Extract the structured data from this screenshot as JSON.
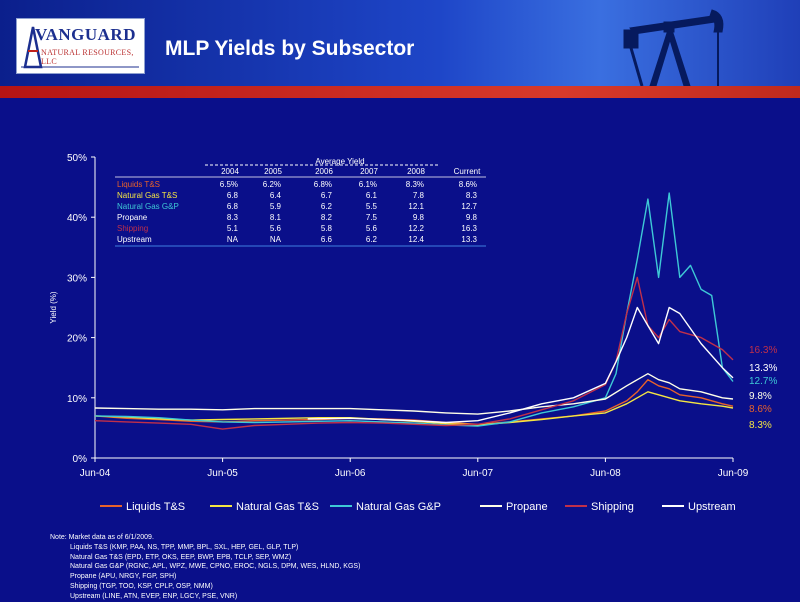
{
  "header": {
    "title": "MLP Yields by Subsector",
    "logo_word": "VANGUARD",
    "logo_sub": "NATURAL RESOURCES, LLC"
  },
  "colors": {
    "background": "#0a0f8a",
    "accent_red": "#c0201a",
    "liquids": "#e8622a",
    "natgas_ts": "#f5e642",
    "natgas_gp": "#3ec9d6",
    "propane": "#ffffe8",
    "shipping": "#c0304a",
    "upstream": "#ffffff"
  },
  "chart_data": {
    "type": "line",
    "title": "",
    "xlabel": "",
    "ylabel": "Yield (%)",
    "x_ticks": [
      "Jun-04",
      "Jun-05",
      "Jun-06",
      "Jun-07",
      "Jun-08",
      "Jun-09"
    ],
    "y_ticks": [
      "0%",
      "10%",
      "20%",
      "30%",
      "40%",
      "50%"
    ],
    "ylim": [
      0,
      50
    ],
    "xlim": [
      "2004-06",
      "2009-06"
    ],
    "legend_position": "bottom",
    "series": [
      {
        "name": "Liquids T&S",
        "color": "#e8622a",
        "points": [
          [
            "2004-06",
            7.0
          ],
          [
            "2004-09",
            6.6
          ],
          [
            "2004-12",
            6.4
          ],
          [
            "2005-03",
            6.1
          ],
          [
            "2005-06",
            6.0
          ],
          [
            "2005-09",
            6.2
          ],
          [
            "2005-12",
            6.3
          ],
          [
            "2006-03",
            6.4
          ],
          [
            "2006-06",
            6.6
          ],
          [
            "2006-09",
            6.5
          ],
          [
            "2006-12",
            6.3
          ],
          [
            "2007-03",
            5.9
          ],
          [
            "2007-06",
            5.6
          ],
          [
            "2007-09",
            6.0
          ],
          [
            "2007-12",
            6.5
          ],
          [
            "2008-03",
            7.0
          ],
          [
            "2008-06",
            7.8
          ],
          [
            "2008-08",
            9.5
          ],
          [
            "2008-09",
            11.0
          ],
          [
            "2008-10",
            13.0
          ],
          [
            "2008-11",
            12.0
          ],
          [
            "2008-12",
            11.5
          ],
          [
            "2009-01",
            10.5
          ],
          [
            "2009-03",
            10.0
          ],
          [
            "2009-05",
            9.0
          ],
          [
            "2009-06",
            8.6
          ]
        ]
      },
      {
        "name": "Natural  Gas T&S",
        "color": "#f5e642",
        "points": [
          [
            "2004-06",
            7.0
          ],
          [
            "2004-09",
            6.8
          ],
          [
            "2004-12",
            6.5
          ],
          [
            "2005-03",
            6.3
          ],
          [
            "2005-06",
            6.4
          ],
          [
            "2005-09",
            6.5
          ],
          [
            "2005-12",
            6.6
          ],
          [
            "2006-03",
            6.7
          ],
          [
            "2006-06",
            6.7
          ],
          [
            "2006-09",
            6.4
          ],
          [
            "2006-12",
            6.1
          ],
          [
            "2007-03",
            5.7
          ],
          [
            "2007-06",
            5.5
          ],
          [
            "2007-09",
            5.9
          ],
          [
            "2007-12",
            6.4
          ],
          [
            "2008-03",
            7.0
          ],
          [
            "2008-06",
            7.5
          ],
          [
            "2008-08",
            9.0
          ],
          [
            "2008-09",
            10.0
          ],
          [
            "2008-10",
            11.0
          ],
          [
            "2008-11",
            10.5
          ],
          [
            "2008-12",
            10.0
          ],
          [
            "2009-01",
            9.5
          ],
          [
            "2009-03",
            9.0
          ],
          [
            "2009-05",
            8.6
          ],
          [
            "2009-06",
            8.3
          ]
        ]
      },
      {
        "name": "Natural Gas G&P",
        "color": "#3ec9d6",
        "points": [
          [
            "2004-06",
            7.0
          ],
          [
            "2004-09",
            6.9
          ],
          [
            "2004-12",
            6.7
          ],
          [
            "2005-03",
            6.3
          ],
          [
            "2005-06",
            6.0
          ],
          [
            "2005-09",
            5.9
          ],
          [
            "2005-12",
            6.0
          ],
          [
            "2006-03",
            6.1
          ],
          [
            "2006-06",
            6.2
          ],
          [
            "2006-09",
            6.0
          ],
          [
            "2006-12",
            5.8
          ],
          [
            "2007-03",
            5.5
          ],
          [
            "2007-06",
            5.3
          ],
          [
            "2007-09",
            6.0
          ],
          [
            "2007-12",
            7.5
          ],
          [
            "2008-03",
            8.5
          ],
          [
            "2008-06",
            10.0
          ],
          [
            "2008-07",
            14.0
          ],
          [
            "2008-08",
            24.0
          ],
          [
            "2008-09",
            33.0
          ],
          [
            "2008-10",
            43.0
          ],
          [
            "2008-11",
            30.0
          ],
          [
            "2008-12",
            44.0
          ],
          [
            "2009-01",
            30.0
          ],
          [
            "2009-02",
            32.0
          ],
          [
            "2009-03",
            28.0
          ],
          [
            "2009-04",
            27.0
          ],
          [
            "2009-05",
            15.0
          ],
          [
            "2009-06",
            12.7
          ]
        ]
      },
      {
        "name": "Propane",
        "color": "#ffffe8",
        "points": [
          [
            "2004-06",
            8.3
          ],
          [
            "2004-09",
            8.2
          ],
          [
            "2004-12",
            8.1
          ],
          [
            "2005-03",
            8.1
          ],
          [
            "2005-06",
            8.0
          ],
          [
            "2005-09",
            8.2
          ],
          [
            "2005-12",
            8.2
          ],
          [
            "2006-03",
            8.2
          ],
          [
            "2006-06",
            8.2
          ],
          [
            "2006-09",
            8.0
          ],
          [
            "2006-12",
            7.8
          ],
          [
            "2007-03",
            7.5
          ],
          [
            "2007-06",
            7.3
          ],
          [
            "2007-09",
            7.8
          ],
          [
            "2007-12",
            8.5
          ],
          [
            "2008-03",
            9.0
          ],
          [
            "2008-06",
            9.8
          ],
          [
            "2008-08",
            12.0
          ],
          [
            "2008-09",
            13.0
          ],
          [
            "2008-10",
            14.0
          ],
          [
            "2008-11",
            13.0
          ],
          [
            "2008-12",
            12.5
          ],
          [
            "2009-01",
            11.5
          ],
          [
            "2009-03",
            11.0
          ],
          [
            "2009-05",
            10.0
          ],
          [
            "2009-06",
            9.8
          ]
        ]
      },
      {
        "name": "Shipping",
        "color": "#c0304a",
        "points": [
          [
            "2004-06",
            6.2
          ],
          [
            "2004-09",
            6.0
          ],
          [
            "2004-12",
            5.8
          ],
          [
            "2005-03",
            5.6
          ],
          [
            "2005-06",
            4.8
          ],
          [
            "2005-09",
            5.4
          ],
          [
            "2005-12",
            5.6
          ],
          [
            "2006-03",
            5.8
          ],
          [
            "2006-06",
            5.9
          ],
          [
            "2006-09",
            5.8
          ],
          [
            "2006-12",
            5.6
          ],
          [
            "2007-03",
            5.4
          ],
          [
            "2007-06",
            5.6
          ],
          [
            "2007-09",
            6.5
          ],
          [
            "2007-12",
            8.0
          ],
          [
            "2008-03",
            9.5
          ],
          [
            "2008-06",
            12.2
          ],
          [
            "2008-07",
            16.0
          ],
          [
            "2008-08",
            24.0
          ],
          [
            "2008-09",
            30.0
          ],
          [
            "2008-10",
            22.0
          ],
          [
            "2008-11",
            20.0
          ],
          [
            "2008-12",
            23.0
          ],
          [
            "2009-01",
            21.0
          ],
          [
            "2009-03",
            20.0
          ],
          [
            "2009-05",
            18.0
          ],
          [
            "2009-06",
            16.3
          ]
        ]
      },
      {
        "name": "Upstream",
        "color": "#ffffff",
        "points": [
          [
            "2006-02",
            6.5
          ],
          [
            "2006-06",
            6.6
          ],
          [
            "2006-09",
            6.4
          ],
          [
            "2006-12",
            6.2
          ],
          [
            "2007-03",
            5.9
          ],
          [
            "2007-06",
            6.2
          ],
          [
            "2007-09",
            7.5
          ],
          [
            "2007-12",
            9.0
          ],
          [
            "2008-03",
            10.0
          ],
          [
            "2008-06",
            12.4
          ],
          [
            "2008-07",
            16.0
          ],
          [
            "2008-08",
            20.0
          ],
          [
            "2008-09",
            25.0
          ],
          [
            "2008-10",
            22.0
          ],
          [
            "2008-11",
            19.0
          ],
          [
            "2008-12",
            25.0
          ],
          [
            "2009-01",
            24.0
          ],
          [
            "2009-03",
            19.0
          ],
          [
            "2009-05",
            15.0
          ],
          [
            "2009-06",
            13.3
          ]
        ]
      }
    ],
    "end_labels": [
      {
        "text": "16.3%",
        "value": 16.3,
        "color": "#c0304a"
      },
      {
        "text": "13.3%",
        "value": 13.3,
        "color": "#ffffff"
      },
      {
        "text": "12.7%",
        "value": 12.7,
        "color": "#3ec9d6"
      },
      {
        "text": "9.8%",
        "value": 9.8,
        "color": "#ffffe8"
      },
      {
        "text": "8.6%",
        "value": 8.6,
        "color": "#e8622a"
      },
      {
        "text": "8.3%",
        "value": 8.3,
        "color": "#f5e642"
      }
    ],
    "table": {
      "title": "Average Yield",
      "columns": [
        "2004",
        "2005",
        "2006",
        "2007",
        "2008",
        "Current"
      ],
      "rows": [
        {
          "label": "Liquids T&S",
          "color": "#e8622a",
          "values": [
            "6.5%",
            "6.2%",
            "6.8%",
            "6.1%",
            "8.3%",
            "8.6%"
          ]
        },
        {
          "label": "Natural  Gas T&S",
          "color": "#f5e642",
          "values": [
            "6.8",
            "6.4",
            "6.7",
            "6.1",
            "7.8",
            "8.3"
          ]
        },
        {
          "label": "Natural Gas G&P",
          "color": "#3ec9d6",
          "values": [
            "6.8",
            "5.9",
            "6.2",
            "5.5",
            "12.1",
            "12.7"
          ]
        },
        {
          "label": "Propane",
          "color": "#ffffff",
          "values": [
            "8.3",
            "8.1",
            "8.2",
            "7.5",
            "9.8",
            "9.8"
          ]
        },
        {
          "label": "Shipping",
          "color": "#c0304a",
          "values": [
            "5.1",
            "5.6",
            "5.8",
            "5.6",
            "12.2",
            "16.3"
          ]
        },
        {
          "label": "Upstream",
          "color": "#ffffff",
          "values": [
            "NA",
            "NA",
            "6.6",
            "6.2",
            "12.4",
            "13.3"
          ]
        }
      ]
    }
  },
  "notes": {
    "lead": "Note: Market data as of 6/1/2009.",
    "lines": [
      "Liquids T&S (KMP, PAA, NS, TPP, MMP, BPL, SXL, HEP, GEL, GLP, TLP)",
      "Natural Gas T&S (EPD, ETP, OKS, EEP, BWP, EPB, TCLP, SEP, WMZ)",
      "Natural Gas G&P (RGNC, APL, WPZ, MWE, CPNO, EROC, NGLS, DPM, WES, HLND, KGS)",
      "Propane (APU, NRGY, FGP, SPH)",
      "Shipping (TGP, TOO, KSP, CPLP, OSP, NMM)",
      "Upstream (LINE, ATN,  EVEP, ENP, LGCY, PSE, VNR)"
    ]
  }
}
